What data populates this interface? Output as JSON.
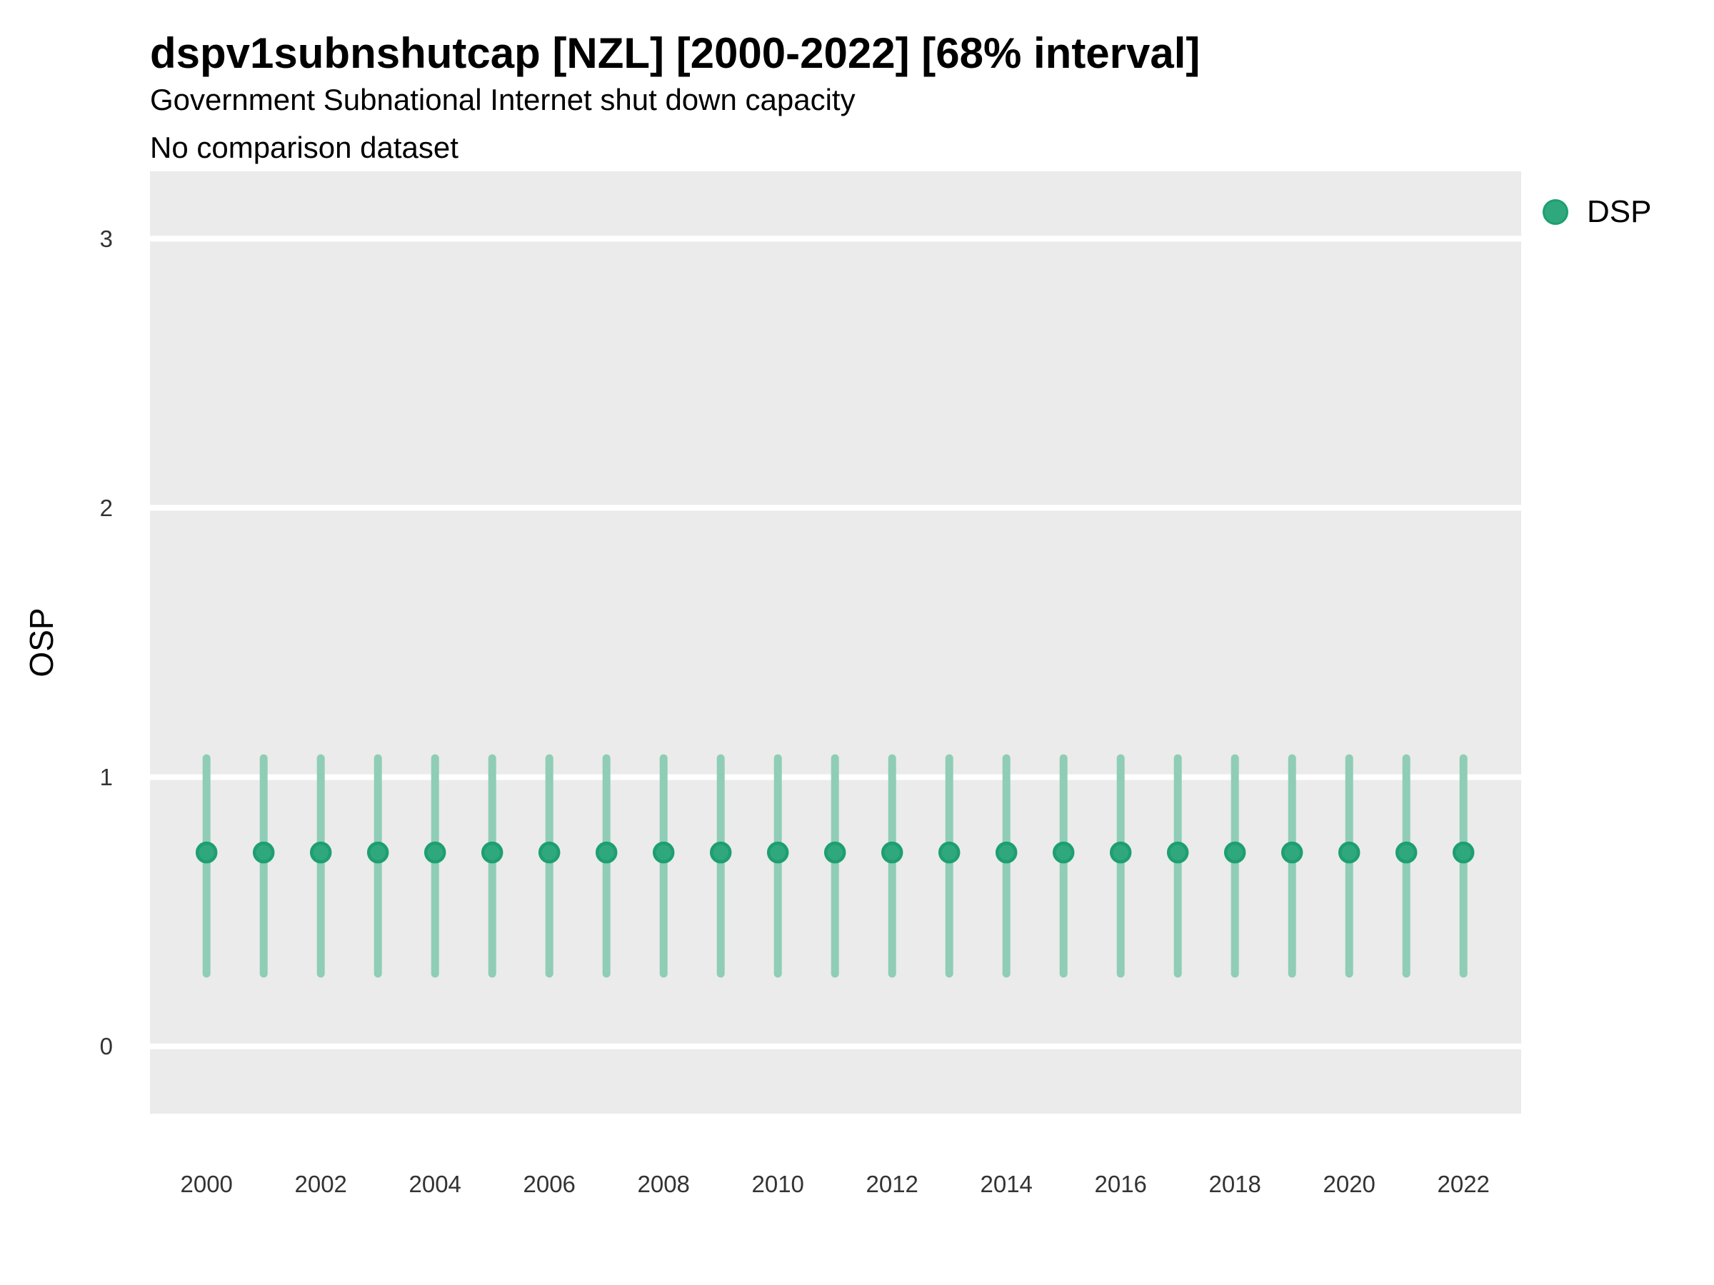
{
  "header": {
    "title": "dspv1subnshutcap [NZL] [2000-2022] [68% interval]",
    "subtitle": "Government Subnational Internet shut down capacity",
    "note": "No comparison dataset"
  },
  "axes": {
    "y_label": "OSP",
    "x_label": ""
  },
  "legend": {
    "position": "right",
    "items": [
      {
        "label": "DSP",
        "color": "#2FA87E"
      }
    ]
  },
  "colors": {
    "point_fill": "#2FA87E",
    "point_stroke": "#1E9F70",
    "interval_line": "#8FCDB6",
    "panel_bg": "#EBEBEB",
    "gridline": "#FFFFFF",
    "tick_text": "#333333"
  },
  "chart_data": {
    "type": "scatter",
    "title": "dspv1subnshutcap [NZL] [2000-2022] [68% interval]",
    "subtitle": "Government Subnational Internet shut down capacity",
    "note": "No comparison dataset",
    "interval": "68%",
    "xlabel": "",
    "ylabel": "OSP",
    "grid": true,
    "legend_position": "right",
    "x": [
      2000,
      2001,
      2002,
      2003,
      2004,
      2005,
      2006,
      2007,
      2008,
      2009,
      2010,
      2011,
      2012,
      2013,
      2014,
      2015,
      2016,
      2017,
      2018,
      2019,
      2020,
      2021,
      2022
    ],
    "series": [
      {
        "name": "DSP",
        "values": [
          0.72,
          0.72,
          0.72,
          0.72,
          0.72,
          0.72,
          0.72,
          0.72,
          0.72,
          0.72,
          0.72,
          0.72,
          0.72,
          0.72,
          0.72,
          0.72,
          0.72,
          0.72,
          0.72,
          0.72,
          0.72,
          0.72,
          0.72
        ],
        "lower": [
          0.27,
          0.27,
          0.27,
          0.27,
          0.27,
          0.27,
          0.27,
          0.27,
          0.27,
          0.27,
          0.27,
          0.27,
          0.27,
          0.27,
          0.27,
          0.27,
          0.27,
          0.27,
          0.27,
          0.27,
          0.27,
          0.27,
          0.27
        ],
        "upper": [
          1.07,
          1.07,
          1.07,
          1.07,
          1.07,
          1.07,
          1.07,
          1.07,
          1.07,
          1.07,
          1.07,
          1.07,
          1.07,
          1.07,
          1.07,
          1.07,
          1.07,
          1.07,
          1.07,
          1.07,
          1.07,
          1.07,
          1.07
        ]
      }
    ],
    "xticks": [
      2000,
      2002,
      2004,
      2006,
      2008,
      2010,
      2012,
      2014,
      2016,
      2018,
      2020,
      2022
    ],
    "yticks": [
      0,
      1,
      2,
      3
    ],
    "xlim": [
      1999.01,
      2023.01
    ],
    "ylim": [
      -0.25,
      3.25
    ]
  }
}
